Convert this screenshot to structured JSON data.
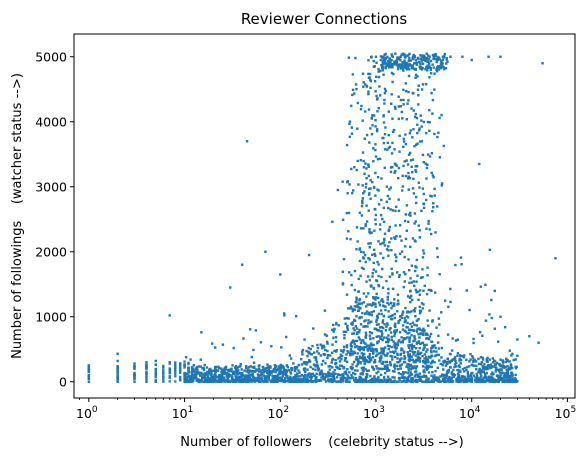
{
  "chart_data": {
    "type": "scatter",
    "title": "Reviewer Connections",
    "xlabel": "Number of followers    (celebrity status -->)",
    "ylabel": "Number of followings    (watcher status -->)",
    "x_scale": "log",
    "xlim": [
      0.7,
      120000
    ],
    "ylim": [
      -250,
      5350
    ],
    "x_ticks": [
      {
        "value": 1,
        "base": "10",
        "exp": "0"
      },
      {
        "value": 10,
        "base": "10",
        "exp": "1"
      },
      {
        "value": 100,
        "base": "10",
        "exp": "2"
      },
      {
        "value": 1000,
        "base": "10",
        "exp": "3"
      },
      {
        "value": 10000,
        "base": "10",
        "exp": "4"
      },
      {
        "value": 100000,
        "base": "10",
        "exp": "5"
      }
    ],
    "y_ticks": [
      0,
      1000,
      2000,
      3000,
      4000,
      5000
    ],
    "y_tick_labels": [
      "0",
      "1000",
      "2000",
      "3000",
      "4000",
      "5000"
    ],
    "grid": false,
    "marker_color": "#1f77b4",
    "series": [
      {
        "points": [
          [
            1,
            0
          ],
          [
            1,
            50
          ],
          [
            1,
            100
          ],
          [
            1,
            150
          ],
          [
            1,
            200
          ],
          [
            1,
            250
          ],
          [
            2,
            0
          ],
          [
            2,
            80
          ],
          [
            2,
            160
          ],
          [
            2,
            240
          ],
          [
            2,
            320
          ],
          [
            2,
            430
          ],
          [
            3,
            0
          ],
          [
            3,
            100
          ],
          [
            3,
            200
          ],
          [
            3,
            280
          ],
          [
            4,
            0
          ],
          [
            4,
            120
          ],
          [
            4,
            250
          ],
          [
            4,
            300
          ],
          [
            5,
            0
          ],
          [
            5,
            130
          ],
          [
            5,
            260
          ],
          [
            5,
            320
          ],
          [
            7,
            300
          ],
          [
            7,
            1020
          ],
          [
            15,
            760
          ],
          [
            30,
            1450
          ],
          [
            40,
            1800
          ],
          [
            45,
            3700
          ],
          [
            70,
            2000
          ],
          [
            100,
            1650
          ],
          [
            110,
            1050
          ],
          [
            200,
            1950
          ],
          [
            350,
            2460
          ],
          [
            400,
            2950
          ],
          [
            500,
            3070
          ],
          [
            450,
            1500
          ],
          [
            700,
            2000
          ],
          [
            800,
            4550
          ],
          [
            900,
            5000
          ],
          [
            1000,
            5000
          ],
          [
            1200,
            5000
          ],
          [
            1500,
            5000
          ],
          [
            2000,
            5000
          ],
          [
            2500,
            5000
          ],
          [
            3000,
            5000
          ],
          [
            4000,
            5000
          ],
          [
            5000,
            5000
          ],
          [
            6000,
            5000
          ],
          [
            8000,
            5000
          ],
          [
            10000,
            4950
          ],
          [
            15000,
            5000
          ],
          [
            20000,
            5000
          ],
          [
            55000,
            4900
          ],
          [
            75000,
            1900
          ],
          [
            20000,
            1000
          ],
          [
            30000,
            650
          ],
          [
            12000,
            3350
          ],
          [
            30000,
            400
          ],
          [
            40000,
            700
          ],
          [
            50000,
            600
          ]
        ]
      }
    ]
  }
}
